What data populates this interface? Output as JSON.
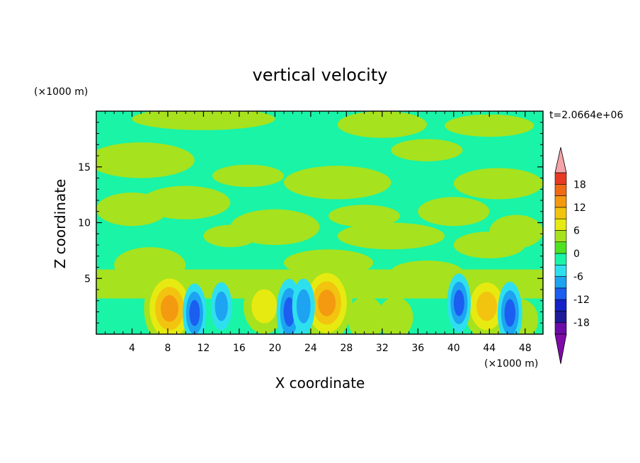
{
  "chart_data": {
    "type": "heatmap",
    "title": "vertical velocity",
    "xlabel": "X coordinate",
    "ylabel": "Z coordinate",
    "x_unit": "(×1000 m)",
    "y_unit": "(×1000 m)",
    "time_label": "t=2.0664e+06",
    "xlim": [
      0,
      50
    ],
    "ylim": [
      0,
      20
    ],
    "x_ticks": [
      "4",
      "8",
      "12",
      "16",
      "20",
      "24",
      "28",
      "32",
      "36",
      "40",
      "44",
      "48"
    ],
    "y_ticks": [
      "5",
      "10",
      "15"
    ],
    "colorbar": {
      "labels": [
        "18",
        "12",
        "6",
        "0",
        "-6",
        "-12",
        "-18"
      ],
      "levels": [
        -21,
        -18,
        -15,
        -12,
        -9,
        -6,
        -3,
        0,
        3,
        6,
        9,
        12,
        15,
        18,
        21
      ],
      "colors": [
        "#6a0aa8",
        "#1e1a9a",
        "#1522c8",
        "#1b5ef0",
        "#1da3f2",
        "#2ee0ee",
        "#19f4a7",
        "#4ee222",
        "#a6e21e",
        "#e6ea10",
        "#f2c410",
        "#f49a10",
        "#f06a16",
        "#e83a22",
        "#d8142a",
        "#f4a4a8"
      ],
      "under_color": "#800aa8",
      "over_color": "#f4a4a8"
    },
    "background_level_color": "#19f4a7",
    "features": [
      {
        "x": 8.2,
        "z": 2.3,
        "value": 14,
        "sign": "updraft"
      },
      {
        "x": 18.8,
        "z": 2.5,
        "value": 8,
        "sign": "updraft"
      },
      {
        "x": 25.8,
        "z": 2.8,
        "value": 14,
        "sign": "updraft"
      },
      {
        "x": 43.7,
        "z": 2.5,
        "value": 11,
        "sign": "updraft"
      },
      {
        "x": 30.2,
        "z": 1.4,
        "value": 5,
        "sign": "updraft"
      },
      {
        "x": 33.5,
        "z": 1.5,
        "value": 4,
        "sign": "updraft"
      },
      {
        "x": 47.5,
        "z": 1.3,
        "value": 4,
        "sign": "updraft"
      },
      {
        "x": 21.6,
        "z": 2.0,
        "value": -11,
        "sign": "downdraft"
      },
      {
        "x": 11.0,
        "z": 1.9,
        "value": -9,
        "sign": "downdraft"
      },
      {
        "x": 46.3,
        "z": 1.9,
        "value": -10,
        "sign": "downdraft"
      },
      {
        "x": 40.6,
        "z": 2.8,
        "value": -9,
        "sign": "downdraft"
      },
      {
        "x": 23.2,
        "z": 2.5,
        "value": -8,
        "sign": "downdraft"
      },
      {
        "x": 14.0,
        "z": 2.5,
        "value": -6,
        "sign": "downdraft"
      }
    ]
  }
}
